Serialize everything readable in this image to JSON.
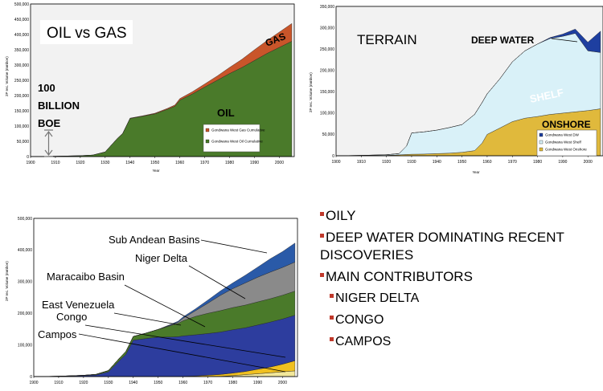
{
  "bullets": [
    {
      "text": "OILY",
      "level": 1
    },
    {
      "text": "DEEP WATER DOMINATING RECENT DISCOVERIES",
      "level": 1
    },
    {
      "text": "MAIN CONTRIBUTORS",
      "level": 1
    },
    {
      "text": "NIGER DELTA",
      "level": 2
    },
    {
      "text": "CONGO",
      "level": 2
    },
    {
      "text": "CAMPOS",
      "level": 2
    }
  ],
  "bullet_color": "#c0392b",
  "chart_data": [
    {
      "id": "oil-gas",
      "type": "area",
      "stacked": true,
      "title": "OIL vs GAS",
      "xlabel": "Year",
      "ylabel": "2P rec. Volume (mmboe)",
      "xlim": [
        1900,
        2006
      ],
      "ylim": [
        0,
        500000
      ],
      "x_ticks": [
        1900,
        1910,
        1920,
        1930,
        1940,
        1950,
        1960,
        1970,
        1980,
        1990,
        2000
      ],
      "y_ticks": [
        0,
        50000,
        100000,
        150000,
        200000,
        250000,
        300000,
        350000,
        400000,
        450000,
        500000
      ],
      "y_tick_labels": [
        "0",
        "50,000",
        "100,000",
        "150,000",
        "200,000",
        "250,000",
        "300,000",
        "350,000",
        "400,000",
        "450,000",
        "500,000"
      ],
      "x": [
        1900,
        1910,
        1920,
        1925,
        1930,
        1935,
        1937,
        1940,
        1945,
        1950,
        1955,
        1958,
        1960,
        1965,
        1970,
        1975,
        1980,
        1985,
        1990,
        1995,
        2000,
        2005
      ],
      "series": [
        {
          "name": "Gondwana West Oil Cumulative",
          "color": "#4a7a2a",
          "values": [
            0,
            1000,
            3000,
            5000,
            15000,
            60000,
            75000,
            125000,
            132000,
            140000,
            155000,
            165000,
            185000,
            205000,
            228000,
            250000,
            272000,
            292000,
            315000,
            338000,
            358000,
            378000
          ]
        },
        {
          "name": "Gondwana West Gas Cumulative",
          "color": "#c9552a",
          "values": [
            0,
            0,
            0,
            0,
            200,
            500,
            600,
            1000,
            1500,
            2000,
            3000,
            4000,
            5000,
            7000,
            10000,
            14000,
            20000,
            27000,
            35000,
            42000,
            50000,
            58000
          ]
        }
      ],
      "annotations": [
        {
          "text": "GAS"
        },
        {
          "text": "OIL"
        },
        {
          "text": "100"
        },
        {
          "text": "BILLION"
        },
        {
          "text": "BOE"
        }
      ],
      "arrow_range": [
        0,
        100000
      ],
      "grid": true,
      "legend": "bottom-right"
    },
    {
      "id": "terrain",
      "type": "area",
      "stacked": true,
      "title": "TERRAIN",
      "xlabel": "Year",
      "ylabel": "2P rec. Volume (mmboe)",
      "xlim": [
        1900,
        2006
      ],
      "ylim": [
        0,
        350000
      ],
      "x_ticks": [
        1900,
        1910,
        1920,
        1930,
        1940,
        1950,
        1960,
        1970,
        1980,
        1990,
        2000
      ],
      "y_ticks": [
        0,
        50000,
        100000,
        150000,
        200000,
        250000,
        300000,
        350000
      ],
      "y_tick_labels": [
        "0",
        "50,000",
        "100,000",
        "150,000",
        "200,000",
        "250,000",
        "300,000",
        "350,000"
      ],
      "x": [
        1900,
        1910,
        1920,
        1925,
        1928,
        1930,
        1935,
        1940,
        1945,
        1950,
        1955,
        1958,
        1960,
        1965,
        1970,
        1975,
        1980,
        1985,
        1990,
        1995,
        2000,
        2005
      ],
      "series": [
        {
          "name": "Gondwana West Onshore",
          "color": "#e0b93c",
          "values": [
            0,
            500,
            1000,
            2000,
            3000,
            3500,
            4000,
            5000,
            6000,
            8000,
            12000,
            30000,
            50000,
            65000,
            80000,
            88000,
            92000,
            97000,
            100000,
            103000,
            106000,
            110000
          ]
        },
        {
          "name": "Gondwana West Shelf",
          "color": "#d9f1f8",
          "values": [
            0,
            500,
            1500,
            3000,
            20000,
            50000,
            52000,
            55000,
            60000,
            65000,
            85000,
            95000,
            95000,
            115000,
            140000,
            158000,
            170000,
            178000,
            180000,
            184000,
            140000,
            132000
          ]
        },
        {
          "name": "Gondwana West DW",
          "color": "#1e3fa0",
          "values": [
            0,
            0,
            0,
            0,
            0,
            0,
            0,
            0,
            0,
            0,
            0,
            0,
            0,
            0,
            0,
            0,
            0,
            2000,
            5000,
            10000,
            20000,
            50000
          ]
        }
      ],
      "annotations": [
        {
          "text": "DEEP WATER"
        },
        {
          "text": "SHELF"
        },
        {
          "text": "ONSHORE"
        }
      ],
      "grid": true,
      "legend": "bottom-right"
    },
    {
      "id": "basins",
      "type": "area",
      "stacked": true,
      "xlabel": "",
      "ylabel": "2P rec. Volume (mmboe)",
      "xlim": [
        1900,
        2006
      ],
      "ylim": [
        0,
        500000
      ],
      "x_ticks": [
        1900,
        1910,
        1920,
        1930,
        1940,
        1950,
        1960,
        1970,
        1980,
        1990,
        2000
      ],
      "y_ticks": [
        0,
        100000,
        200000,
        300000,
        400000,
        500000
      ],
      "y_tick_labels": [
        "0",
        "100,000",
        "200,000",
        "300,000",
        "400,000",
        "500,000"
      ],
      "x": [
        1900,
        1910,
        1920,
        1925,
        1930,
        1935,
        1937,
        1940,
        1945,
        1950,
        1955,
        1958,
        1960,
        1965,
        1970,
        1975,
        1980,
        1985,
        1990,
        1995,
        2000,
        2005
      ],
      "series": [
        {
          "name": "Campos",
          "color": "#f2e79a",
          "values": [
            0,
            0,
            0,
            0,
            0,
            0,
            0,
            0,
            0,
            0,
            0,
            0,
            0,
            0,
            0,
            500,
            3000,
            6000,
            9000,
            12000,
            15000,
            18000
          ]
        },
        {
          "name": "Congo",
          "color": "#f0c020",
          "values": [
            0,
            0,
            0,
            0,
            0,
            0,
            0,
            0,
            0,
            0,
            0,
            0,
            500,
            2000,
            4000,
            6000,
            8000,
            10000,
            14000,
            18000,
            24000,
            32000
          ]
        },
        {
          "name": "East Venezuela",
          "color": "#2d3d9e",
          "values": [
            0,
            1000,
            3000,
            5000,
            15000,
            55000,
            70000,
            115000,
            120000,
            125000,
            125000,
            126000,
            128000,
            130000,
            132000,
            134000,
            137000,
            138000,
            140000,
            142000,
            143000,
            144000
          ]
        },
        {
          "name": "Maracaibo Basin",
          "color": "#4a7a2a",
          "values": [
            0,
            0,
            1000,
            2000,
            4000,
            8000,
            9000,
            12000,
            17000,
            24000,
            36000,
            42000,
            48000,
            58000,
            64000,
            68000,
            70000,
            72000,
            73000,
            74000,
            75000,
            76000
          ]
        },
        {
          "name": "Niger Delta",
          "color": "#8a8a8a",
          "values": [
            0,
            0,
            0,
            0,
            0,
            0,
            0,
            0,
            0,
            0,
            2000,
            4000,
            8000,
            18000,
            32000,
            48000,
            60000,
            70000,
            78000,
            84000,
            88000,
            92000
          ]
        },
        {
          "name": "Sub Andean Basins",
          "color": "#2a5aa8",
          "values": [
            0,
            0,
            0,
            0,
            0,
            0,
            0,
            0,
            0,
            0,
            2000,
            3000,
            4000,
            6000,
            10000,
            14000,
            18000,
            24000,
            32000,
            42000,
            50000,
            60000
          ]
        }
      ],
      "annotations": [
        {
          "text": "Sub Andean Basins"
        },
        {
          "text": "Niger Delta"
        },
        {
          "text": "Maracaibo Basin"
        },
        {
          "text": "East Venezuela"
        },
        {
          "text": "Congo"
        },
        {
          "text": "Campos"
        }
      ],
      "grid": true
    }
  ]
}
